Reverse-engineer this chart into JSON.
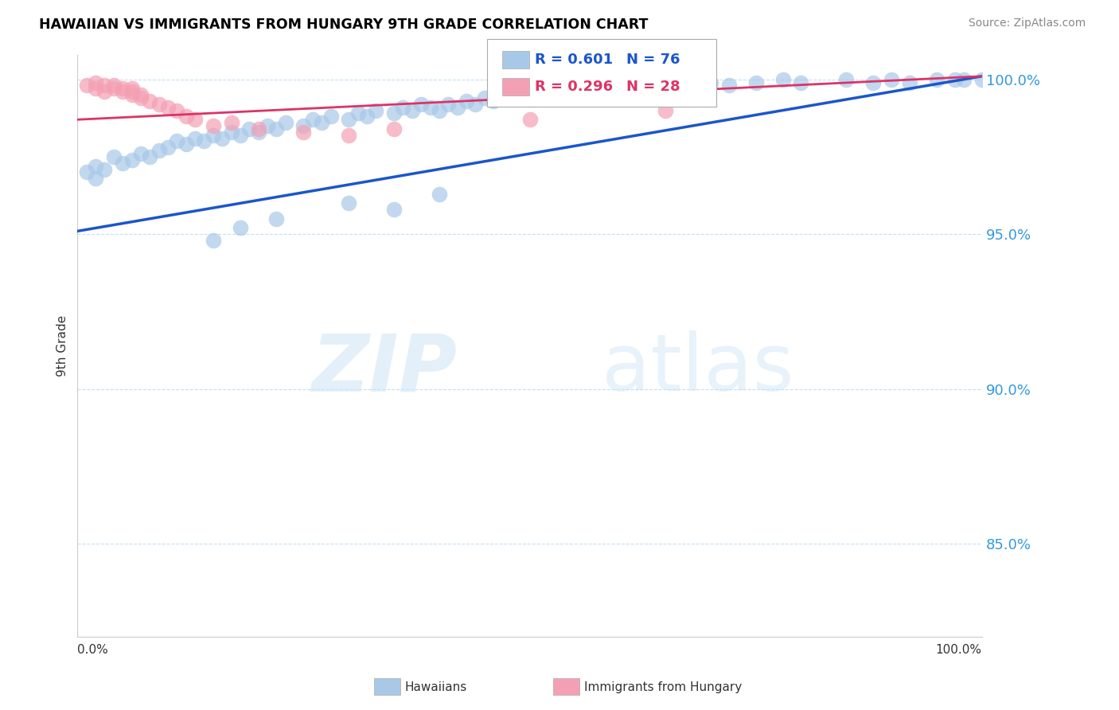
{
  "title": "HAWAIIAN VS IMMIGRANTS FROM HUNGARY 9TH GRADE CORRELATION CHART",
  "source_text": "Source: ZipAtlas.com",
  "ylabel": "9th Grade",
  "xlim": [
    0.0,
    1.0
  ],
  "ylim": [
    0.82,
    1.008
  ],
  "yticks": [
    0.85,
    0.9,
    0.95,
    1.0
  ],
  "ytick_labels": [
    "85.0%",
    "90.0%",
    "95.0%",
    "100.0%"
  ],
  "hawaii_color": "#a8c8e8",
  "hungary_color": "#f4a0b4",
  "hawaii_line_color": "#1a56cc",
  "hungary_line_color": "#dd3366",
  "legend_hawaii_r": "0.601",
  "legend_hawaii_n": "76",
  "legend_hungary_r": "0.296",
  "legend_hungary_n": "28",
  "watermark_zip": "ZIP",
  "watermark_atlas": "atlas",
  "hawaii_x": [
    0.01,
    0.02,
    0.02,
    0.03,
    0.04,
    0.05,
    0.06,
    0.07,
    0.08,
    0.09,
    0.1,
    0.11,
    0.12,
    0.13,
    0.14,
    0.15,
    0.16,
    0.17,
    0.18,
    0.19,
    0.2,
    0.21,
    0.22,
    0.23,
    0.25,
    0.26,
    0.27,
    0.28,
    0.3,
    0.31,
    0.32,
    0.33,
    0.35,
    0.36,
    0.37,
    0.38,
    0.39,
    0.4,
    0.41,
    0.42,
    0.43,
    0.44,
    0.45,
    0.46,
    0.48,
    0.5,
    0.51,
    0.52,
    0.53,
    0.55,
    0.57,
    0.59,
    0.6,
    0.62,
    0.63,
    0.65,
    0.67,
    0.7,
    0.72,
    0.75,
    0.78,
    0.8,
    0.85,
    0.88,
    0.9,
    0.92,
    0.95,
    0.97,
    0.98,
    1.0,
    0.15,
    0.18,
    0.22,
    0.3,
    0.35,
    0.4
  ],
  "hawaii_y": [
    0.97,
    0.968,
    0.972,
    0.971,
    0.975,
    0.973,
    0.974,
    0.976,
    0.975,
    0.977,
    0.978,
    0.98,
    0.979,
    0.981,
    0.98,
    0.982,
    0.981,
    0.983,
    0.982,
    0.984,
    0.983,
    0.985,
    0.984,
    0.986,
    0.985,
    0.987,
    0.986,
    0.988,
    0.987,
    0.989,
    0.988,
    0.99,
    0.989,
    0.991,
    0.99,
    0.992,
    0.991,
    0.99,
    0.992,
    0.991,
    0.993,
    0.992,
    0.994,
    0.993,
    0.994,
    0.995,
    0.994,
    0.996,
    0.995,
    0.996,
    0.997,
    0.996,
    0.997,
    0.998,
    0.997,
    0.998,
    0.997,
    0.999,
    0.998,
    0.999,
    1.0,
    0.999,
    1.0,
    0.999,
    1.0,
    0.999,
    1.0,
    1.0,
    1.0,
    1.0,
    0.948,
    0.952,
    0.955,
    0.96,
    0.958,
    0.963
  ],
  "hungary_x": [
    0.01,
    0.02,
    0.02,
    0.03,
    0.03,
    0.04,
    0.04,
    0.05,
    0.05,
    0.06,
    0.06,
    0.06,
    0.07,
    0.07,
    0.08,
    0.09,
    0.1,
    0.11,
    0.12,
    0.13,
    0.15,
    0.17,
    0.2,
    0.25,
    0.3,
    0.35,
    0.5,
    0.65
  ],
  "hungary_y": [
    0.998,
    0.999,
    0.997,
    0.998,
    0.996,
    0.997,
    0.998,
    0.996,
    0.997,
    0.995,
    0.996,
    0.997,
    0.994,
    0.995,
    0.993,
    0.992,
    0.991,
    0.99,
    0.988,
    0.987,
    0.985,
    0.986,
    0.984,
    0.983,
    0.982,
    0.984,
    0.987,
    0.99
  ],
  "hawaii_line_x0": 0.0,
  "hawaii_line_y0": 0.951,
  "hawaii_line_x1": 1.0,
  "hawaii_line_y1": 1.001,
  "hungary_line_x0": 0.0,
  "hungary_line_y0": 0.987,
  "hungary_line_x1": 1.0,
  "hungary_line_y1": 1.001
}
